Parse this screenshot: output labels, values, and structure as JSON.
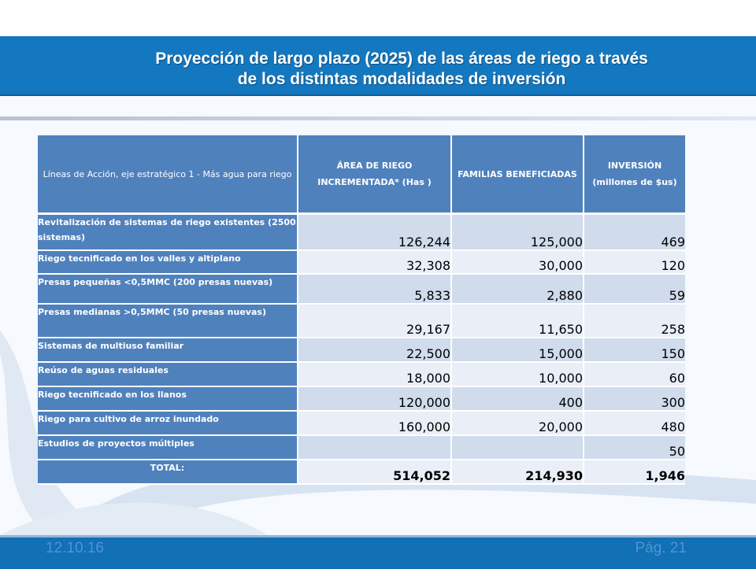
{
  "title": {
    "line1": "Proyección de largo plazo (2025) de las áreas de riego a través",
    "line2": "de los distintas modalidades de inversión"
  },
  "table": {
    "headers": [
      "Líneas de Acción, eje estratégico 1 - Más agua para riego",
      "ÁREA DE RIEGO INCREMENTADA* (Has )",
      "FAMILIAS BENEFICIADAS",
      "INVERSIÓN (millones de $us)"
    ],
    "rows": [
      {
        "label": "Revitalización de sistemas de riego existentes (2500 sistemas)",
        "area": "126,244",
        "familias": "125,000",
        "inversion": "469"
      },
      {
        "label": "Riego tecnificado en los valles y altiplano",
        "area": "32,308",
        "familias": "30,000",
        "inversion": "120"
      },
      {
        "label": "Presas pequeñas <0,5MMC (200 presas  nuevas)",
        "area": "5,833",
        "familias": "2,880",
        "inversion": "59"
      },
      {
        "label": "Presas medianas >0,5MMC (50 presas nuevas)",
        "area": "29,167",
        "familias": "11,650",
        "inversion": "258"
      },
      {
        "label": "Sistemas de multiuso familiar",
        "area": "22,500",
        "familias": "15,000",
        "inversion": "150"
      },
      {
        "label": "Reúso de aguas residuales",
        "area": "18,000",
        "familias": "10,000",
        "inversion": "60"
      },
      {
        "label": "Riego tecnificado en los llanos",
        "area": "120,000",
        "familias": "400",
        "inversion": "300"
      },
      {
        "label": "Riego para cultivo de arroz inundado",
        "area": "160,000",
        "familias": "20,000",
        "inversion": "480"
      },
      {
        "label": "Estudios de proyectos múltiples",
        "area": "",
        "familias": "",
        "inversion": "50"
      }
    ],
    "total": {
      "label": "TOTAL:",
      "area": "514,052",
      "familias": "214,930",
      "inversion": "1,946"
    }
  },
  "footer": {
    "date": "12.10.16",
    "page": "Pág. 21"
  },
  "colors": {
    "title_band": "#1478c0",
    "table_header": "#4f81bd",
    "row_even": "#d0dbec",
    "row_odd": "#e9eef7",
    "footer_band": "#1270b4"
  }
}
